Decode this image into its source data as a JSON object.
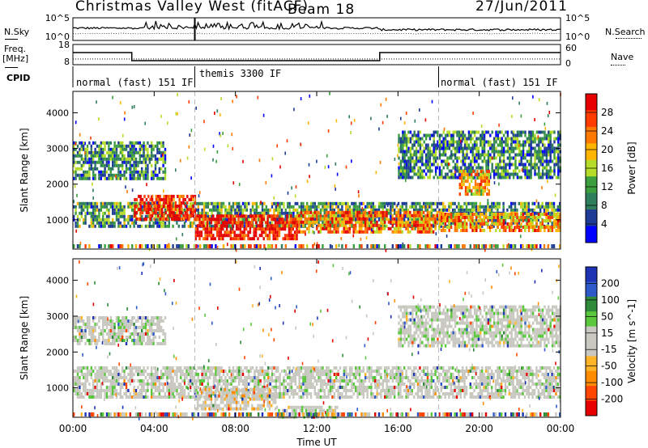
{
  "header": {
    "station": "Christmas Valley West (fitACF)",
    "beam": "Beam 18",
    "date": "27/Jun/2011"
  },
  "sidebar_labels": {
    "nsky": "N.Sky",
    "freq_line1": "Freq.",
    "freq_line2": "[MHz]",
    "cpid": "CPID",
    "nsearch": "N.Search",
    "nave": "Nave"
  },
  "cpid_segments": [
    "normal (fast) 151 IF",
    "themis 3300 IF",
    "normal (fast) 151 IF"
  ],
  "colors": {
    "power_scale": [
      "#0000ff",
      "#1e3c96",
      "#2e7d5b",
      "#3c9e3c",
      "#b4dc28",
      "#ffb400",
      "#ff7800",
      "#ff3c00",
      "#e60000"
    ],
    "velocity_scale": [
      "#1e32b4",
      "#2d5ac8",
      "#2f8a3a",
      "#5ac83c",
      "#c8c8c0",
      "#c8c8c0",
      "#ffb428",
      "#ff8c00",
      "#ff4600",
      "#e60000"
    ]
  },
  "chart_data": [
    {
      "type": "line",
      "title": "N.Sky / N.Search",
      "x_range_hours": [
        0,
        24
      ],
      "y_ticks": [
        "10^5",
        "10^0"
      ],
      "right_ticks": [
        "10^5",
        "10^0"
      ]
    },
    {
      "type": "line",
      "title": "Freq / Nave",
      "x_range_hours": [
        0,
        24
      ],
      "y_ticks": [
        "18",
        "8"
      ],
      "right_ticks": [
        "60",
        "0"
      ],
      "freq_segments": [
        {
          "start": 0,
          "end": 2.9,
          "value": 14
        },
        {
          "start": 2.9,
          "end": 15.1,
          "value": 10
        },
        {
          "start": 15.1,
          "end": 24,
          "value": 14
        }
      ],
      "cpid_boundaries_hours": [
        6.0,
        18.0
      ]
    },
    {
      "type": "heatmap",
      "name": "Power",
      "xlabel": "",
      "ylabel": "Slant Range [km]",
      "ylim": [
        180,
        4600
      ],
      "y_ticks": [
        1000,
        2000,
        3000,
        4000
      ],
      "colorbar_label": "Power [dB]",
      "colorbar_ticks": [
        "4",
        "8",
        "12",
        "16",
        "20",
        "24",
        "28"
      ],
      "bands": [
        {
          "t0": 0.0,
          "t1": 24.0,
          "r0": 800,
          "r1": 1500,
          "level": 0.35
        },
        {
          "t0": 3.0,
          "t1": 6.0,
          "r0": 1050,
          "r1": 1700,
          "level": 0.9
        },
        {
          "t0": 6.0,
          "t1": 11.0,
          "r0": 500,
          "r1": 1150,
          "level": 0.95
        },
        {
          "t0": 11.0,
          "t1": 18.0,
          "r0": 700,
          "r1": 1250,
          "level": 0.75
        },
        {
          "t0": 18.0,
          "t1": 24.0,
          "r0": 700,
          "r1": 1200,
          "level": 0.7
        },
        {
          "t0": 0.0,
          "t1": 4.5,
          "r0": 2200,
          "r1": 3200,
          "level": 0.3
        },
        {
          "t0": 16.0,
          "t1": 24.0,
          "r0": 2200,
          "r1": 3500,
          "level": 0.3
        },
        {
          "t0": 19.0,
          "t1": 20.5,
          "r0": 1750,
          "r1": 2400,
          "level": 0.65
        }
      ]
    },
    {
      "type": "heatmap",
      "name": "Velocity",
      "xlabel": "Time UT",
      "ylabel": "Slant Range [km]",
      "ylim": [
        180,
        4600
      ],
      "y_ticks": [
        1000,
        2000,
        3000,
        4000
      ],
      "colorbar_label": "Velocity [m s^-1]",
      "colorbar_ticks": [
        "200",
        "100",
        "50",
        "15",
        "-15",
        "-50",
        "-100",
        "-200"
      ],
      "x_ticks": [
        "00:00",
        "04:00",
        "08:00",
        "12:00",
        "16:00",
        "20:00",
        "00:00"
      ],
      "bands": [
        {
          "t0": 0.0,
          "t1": 24.0,
          "r0": 750,
          "r1": 1600,
          "level": 0.5
        },
        {
          "t0": 6.0,
          "t1": 10.0,
          "r0": 400,
          "r1": 1000,
          "level": 0.7
        },
        {
          "t0": 10.0,
          "t1": 13.0,
          "r0": 180,
          "r1": 500,
          "level": 0.3
        },
        {
          "t0": 0.0,
          "t1": 4.5,
          "r0": 2200,
          "r1": 3000,
          "level": 0.5
        },
        {
          "t0": 16.0,
          "t1": 24.0,
          "r0": 2200,
          "r1": 3300,
          "level": 0.5
        }
      ]
    }
  ]
}
